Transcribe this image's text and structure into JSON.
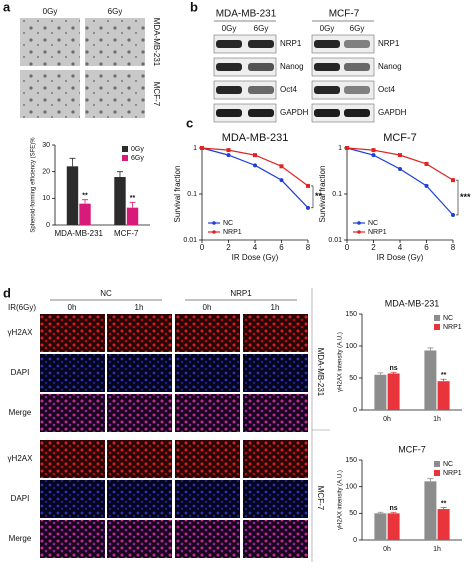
{
  "panel_labels": [
    "a",
    "b",
    "c",
    "d"
  ],
  "a": {
    "columns": [
      "0Gy",
      "6Gy"
    ],
    "rows": [
      "MDA-MB-231",
      "MCF-7"
    ]
  },
  "b": {
    "groups": [
      {
        "name": "MDA-MB-231",
        "lanes": [
          "0Gy",
          "6Gy"
        ]
      },
      {
        "name": "MCF-7",
        "lanes": [
          "0Gy",
          "6Gy"
        ]
      }
    ],
    "proteins": [
      "NRP1",
      "Nanog",
      "Oct4",
      "GAPDH"
    ]
  },
  "d": {
    "treatment": "IR(6Gy)",
    "groups": [
      {
        "name": "NC",
        "times": [
          "0h",
          "1h"
        ]
      },
      {
        "name": "NRP1",
        "times": [
          "0h",
          "1h"
        ]
      }
    ],
    "blocks": [
      {
        "cell_line": "MDA-MB-231",
        "rows": [
          "γH2AX",
          "DAPI",
          "Merge"
        ]
      },
      {
        "cell_line": "MCF-7",
        "rows": [
          "γH2AX",
          "DAPI",
          "Merge"
        ]
      }
    ]
  },
  "chart_data": [
    {
      "type": "bar",
      "ylabel": "Spheroid-forming efficiency (SFE)%",
      "categories": [
        "MDA-MB-231",
        "MCF-7"
      ],
      "ylim": [
        0,
        30
      ],
      "yticks": [
        0,
        10,
        20,
        30
      ],
      "legend": "upper right",
      "series": [
        {
          "name": "0Gy",
          "color": "#2b2b2b",
          "values": [
            22,
            18
          ],
          "errors": [
            3,
            2
          ]
        },
        {
          "name": "6Gy",
          "color": "#d81b7a",
          "values": [
            8,
            6.5
          ],
          "errors": [
            1.5,
            2
          ],
          "labels": [
            "**",
            "**"
          ]
        }
      ]
    },
    {
      "type": "line",
      "title": "MDA-MB-231",
      "xlabel": "IR Dose (Gy)",
      "ylabel": "Survival fraction",
      "x": [
        0,
        2,
        4,
        6,
        8
      ],
      "xlim": [
        0,
        8
      ],
      "xticks": [
        0,
        2,
        4,
        6,
        8
      ],
      "ylim": [
        0.01,
        1
      ],
      "yticks": [
        0.01,
        0.1,
        1
      ],
      "log_y": true,
      "legend": "lower left",
      "annotation": "**",
      "series": [
        {
          "name": "NC",
          "color": "#1f3fd6",
          "marker": "circle",
          "values": [
            1,
            0.7,
            0.42,
            0.2,
            0.05
          ]
        },
        {
          "name": "NRP1",
          "color": "#e02424",
          "marker": "square",
          "values": [
            1,
            0.9,
            0.7,
            0.4,
            0.15
          ]
        }
      ]
    },
    {
      "type": "line",
      "title": "MCF-7",
      "xlabel": "IR Dose (Gy)",
      "ylabel": "Survival fraction",
      "x": [
        0,
        2,
        4,
        6,
        8
      ],
      "xlim": [
        0,
        8
      ],
      "xticks": [
        0,
        2,
        4,
        6,
        8
      ],
      "ylim": [
        0.01,
        1
      ],
      "yticks": [
        0.01,
        0.1,
        1
      ],
      "log_y": true,
      "legend": "lower left",
      "annotation": "***",
      "series": [
        {
          "name": "NC",
          "color": "#1f3fd6",
          "marker": "circle",
          "values": [
            1,
            0.7,
            0.35,
            0.15,
            0.035
          ]
        },
        {
          "name": "NRP1",
          "color": "#e02424",
          "marker": "square",
          "values": [
            1,
            0.9,
            0.7,
            0.45,
            0.2
          ]
        }
      ]
    },
    {
      "type": "bar",
      "title": "MDA-MB-231",
      "ylabel": "γH2AX intensity (A.U.)",
      "categories": [
        "0h",
        "1h"
      ],
      "ylim": [
        0,
        150
      ],
      "yticks": [
        0,
        50,
        100,
        150
      ],
      "legend": "upper right",
      "series": [
        {
          "name": "NC",
          "color": "#8c8c8c",
          "values": [
            55,
            93
          ],
          "errors": [
            3,
            4
          ]
        },
        {
          "name": "NRP1",
          "color": "#e8343a",
          "values": [
            57,
            45
          ],
          "errors": [
            2,
            3
          ],
          "labels": [
            "ns",
            "**"
          ]
        }
      ]
    },
    {
      "type": "bar",
      "title": "MCF-7",
      "ylabel": "γH2AX intensity (A.U.)",
      "categories": [
        "0h",
        "1h"
      ],
      "ylim": [
        0,
        150
      ],
      "yticks": [
        0,
        50,
        100,
        150
      ],
      "legend": "upper right",
      "series": [
        {
          "name": "NC",
          "color": "#8c8c8c",
          "values": [
            50,
            110
          ],
          "errors": [
            2,
            5
          ]
        },
        {
          "name": "NRP1",
          "color": "#e8343a",
          "values": [
            50,
            58
          ],
          "errors": [
            2,
            3
          ],
          "labels": [
            "ns",
            "**"
          ]
        }
      ]
    }
  ]
}
